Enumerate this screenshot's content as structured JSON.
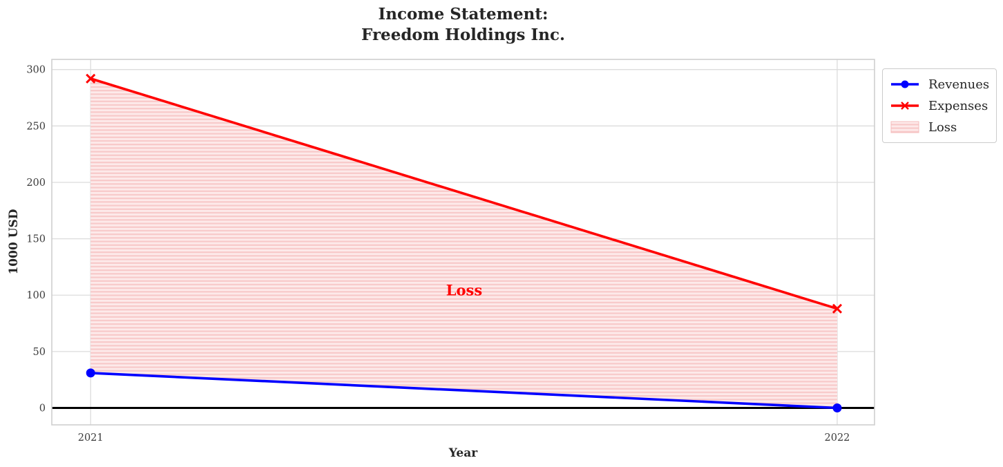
{
  "chart_data": {
    "type": "line",
    "title_line1": "Income Statement:",
    "title_line2": "Freedom Holdings Inc.",
    "xlabel": "Year",
    "ylabel": "1000 USD",
    "x": [
      2021,
      2022
    ],
    "series": [
      {
        "name": "Revenues",
        "values": [
          31,
          0
        ],
        "marker": "circle"
      },
      {
        "name": "Expenses",
        "values": [
          292,
          88
        ],
        "marker": "x"
      }
    ],
    "loss_region": {
      "label": "Loss",
      "between": [
        "Revenues",
        "Expenses"
      ],
      "hatch": "horizontal"
    },
    "xticks": [
      2021,
      2022
    ],
    "xtick_labels": [
      "2021",
      "2022"
    ],
    "yticks": [
      0,
      50,
      100,
      150,
      200,
      250,
      300
    ],
    "xlim": [
      2020.948,
      2022.05
    ],
    "ylim": [
      -15,
      309
    ],
    "grid": true,
    "zero_line_value": 0,
    "legend_entries": [
      "Revenues",
      "Expenses",
      "Loss"
    ],
    "legend_position": "upper-right-outside"
  },
  "colors": {
    "revenues": "#0000ff",
    "expenses": "#ff0000",
    "loss_fill": "#fdeaea",
    "loss_hatch": "#f8caca",
    "loss_swatch_border": "#f5bcbc",
    "grid": "#dcdcdc",
    "spine": "#cfcfcf",
    "zero_line": "#000000",
    "title": "#262626",
    "tick": "#3a3a3a"
  }
}
